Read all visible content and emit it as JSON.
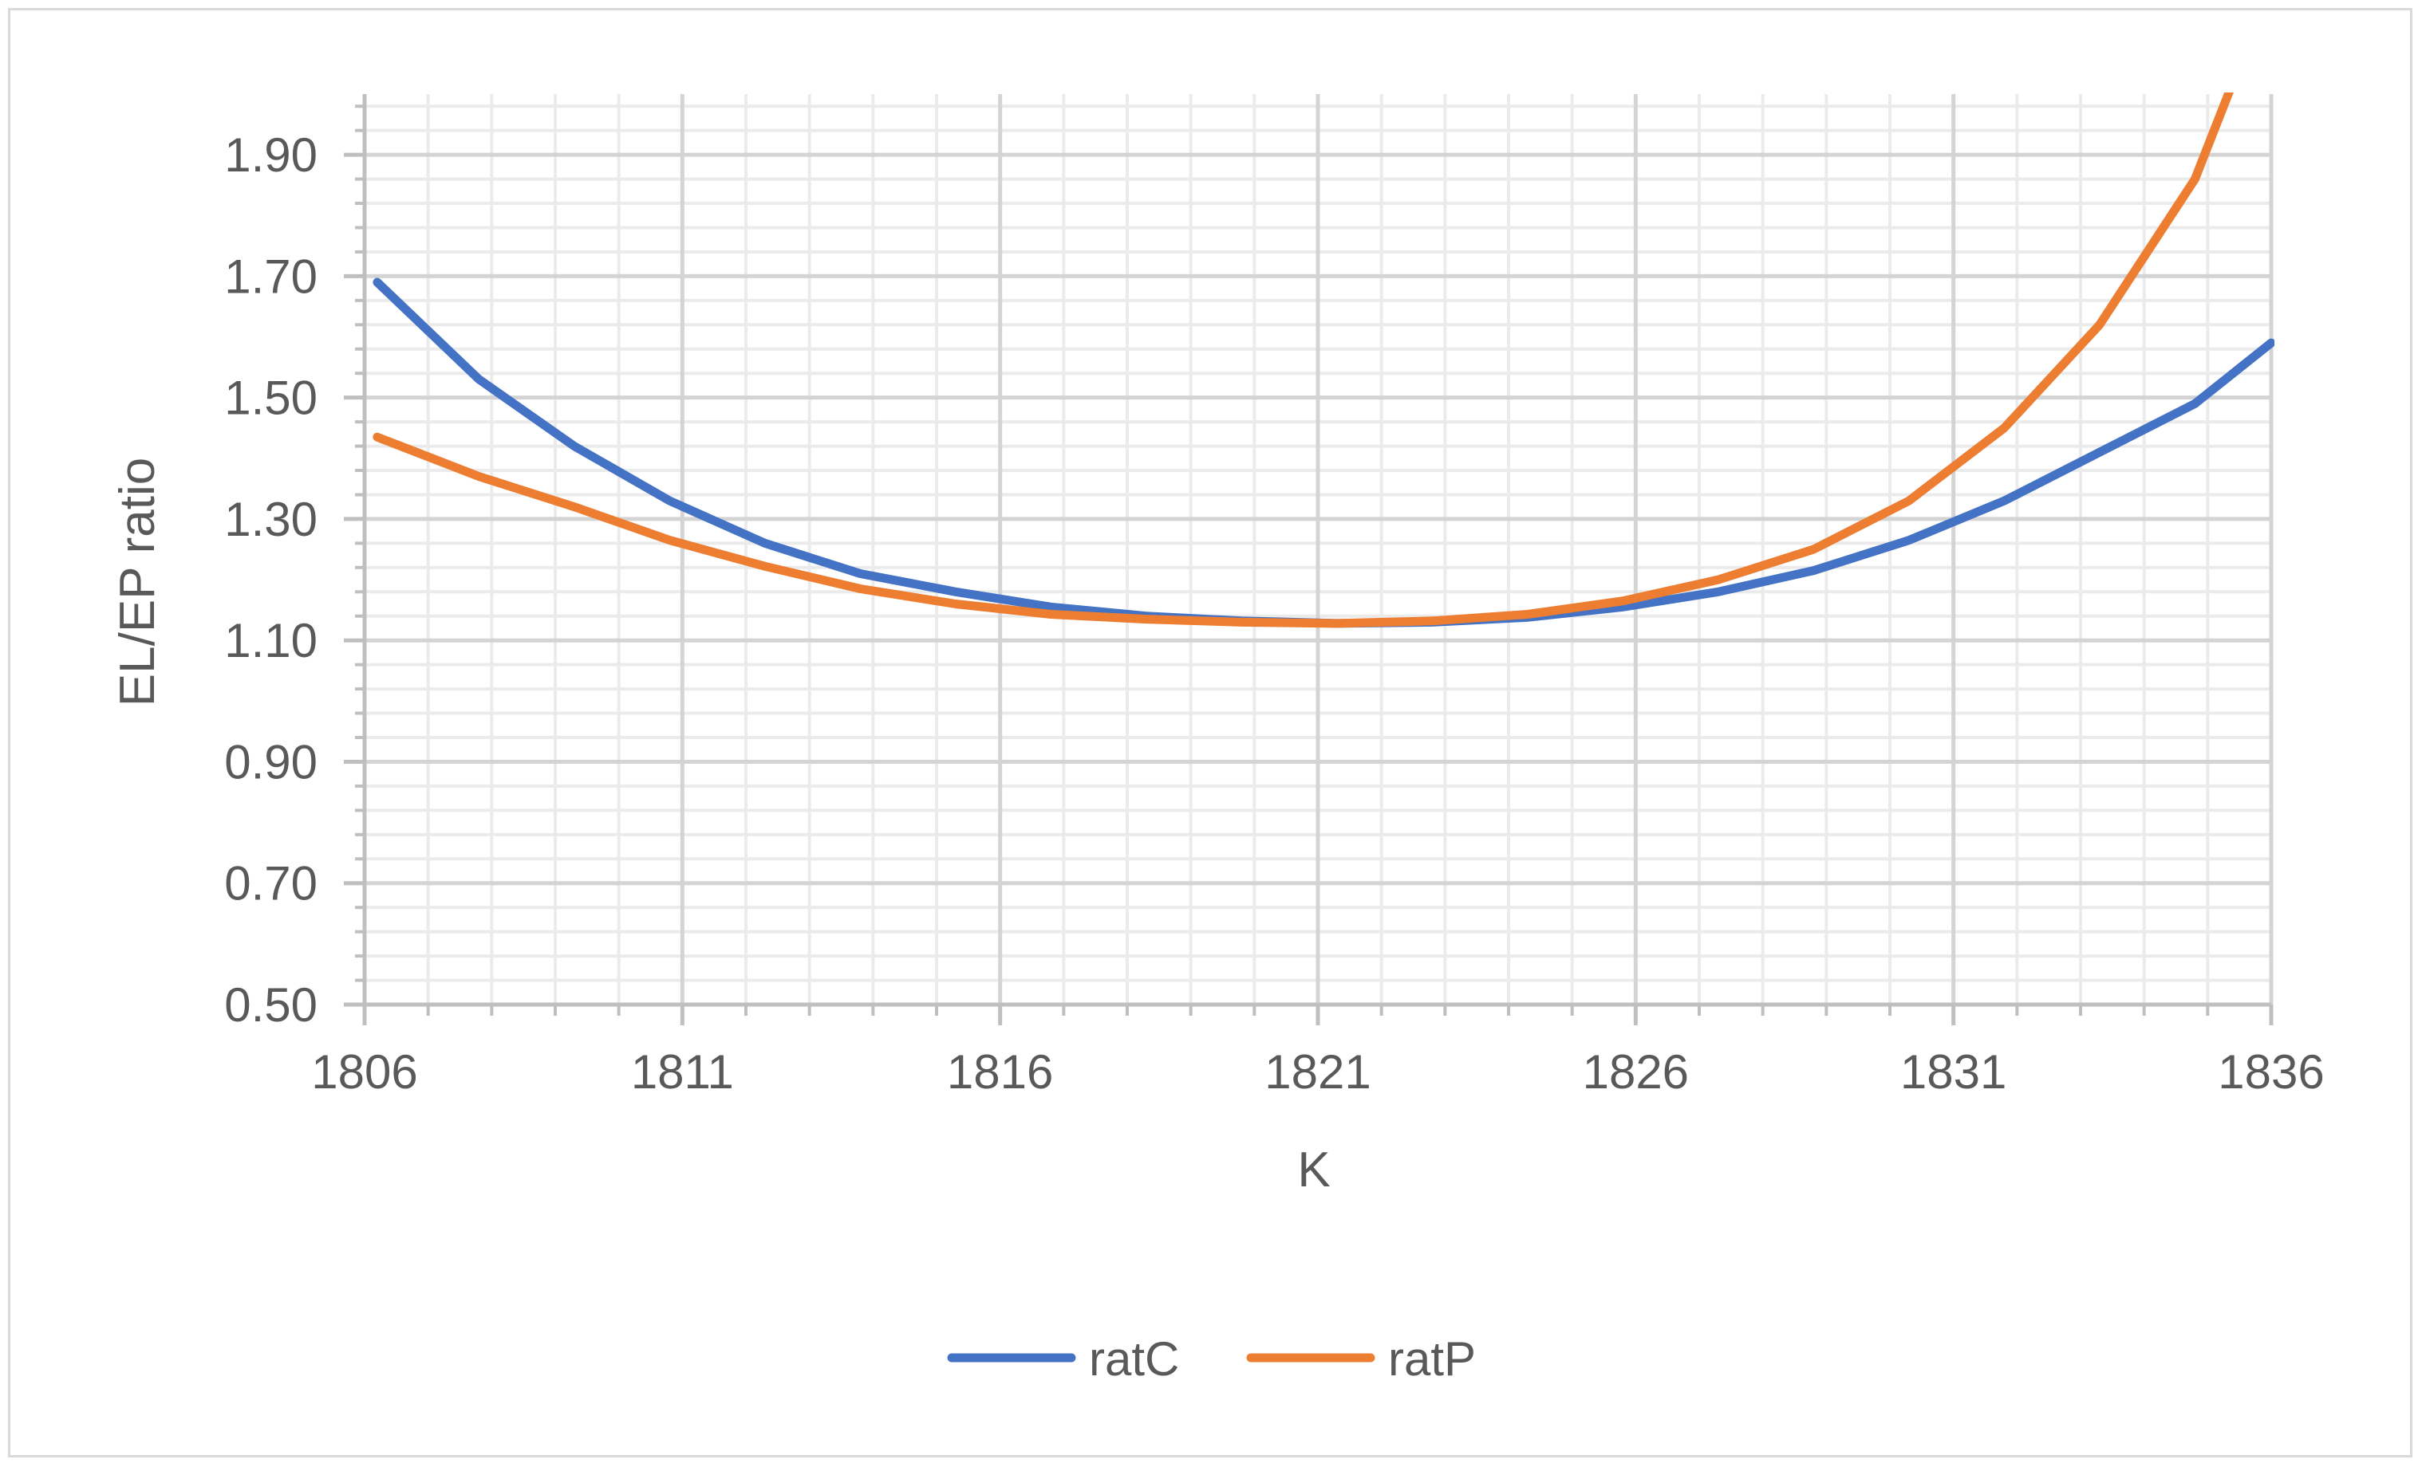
{
  "chart_data": {
    "type": "line",
    "xlabel": "K",
    "ylabel": "EL/EP ratio",
    "xlim": [
      1806,
      1836
    ],
    "ylim": [
      0.5,
      2.0
    ],
    "x_ticks": [
      "1806",
      "1811",
      "1816",
      "1821",
      "1826",
      "1831",
      "1836"
    ],
    "y_ticks": [
      "0.50",
      "0.70",
      "0.90",
      "1.10",
      "1.30",
      "1.50",
      "1.70",
      "1.90"
    ],
    "grid": true,
    "legend_position": "bottom",
    "series": [
      {
        "name": "ratC",
        "color": "#4472C4",
        "x": [
          1806.2,
          1807.8,
          1809.3,
          1810.8,
          1812.3,
          1813.8,
          1815.3,
          1816.8,
          1818.3,
          1819.8,
          1821.3,
          1822.8,
          1824.3,
          1825.8,
          1827.3,
          1828.8,
          1830.3,
          1831.8,
          1833.3,
          1834.8,
          1836.0
        ],
        "y": [
          1.69,
          1.53,
          1.42,
          1.33,
          1.26,
          1.21,
          1.18,
          1.155,
          1.14,
          1.132,
          1.128,
          1.13,
          1.138,
          1.155,
          1.18,
          1.215,
          1.265,
          1.33,
          1.41,
          1.49,
          1.59
        ]
      },
      {
        "name": "ratP",
        "color": "#ED7D31",
        "x": [
          1806.2,
          1807.8,
          1809.3,
          1810.8,
          1812.3,
          1813.8,
          1815.3,
          1816.8,
          1818.3,
          1819.8,
          1821.3,
          1822.8,
          1824.3,
          1825.8,
          1827.3,
          1828.8,
          1830.3,
          1831.8,
          1833.3,
          1834.8,
          1835.4
        ],
        "y": [
          1.435,
          1.37,
          1.32,
          1.265,
          1.222,
          1.185,
          1.16,
          1.143,
          1.135,
          1.13,
          1.128,
          1.132,
          1.143,
          1.165,
          1.2,
          1.25,
          1.33,
          1.45,
          1.62,
          1.86,
          2.02
        ]
      }
    ]
  }
}
